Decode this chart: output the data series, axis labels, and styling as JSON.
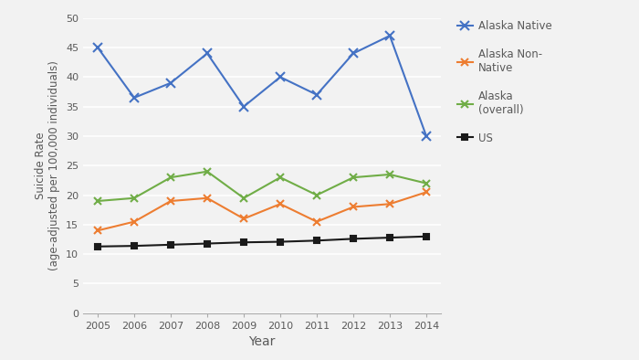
{
  "years": [
    2005,
    2006,
    2007,
    2008,
    2009,
    2010,
    2011,
    2012,
    2013,
    2014
  ],
  "alaska_native": [
    45,
    36.5,
    39,
    44,
    35,
    40,
    37,
    44,
    47,
    30
  ],
  "alaska_non_native": [
    14,
    15.5,
    19,
    19.5,
    16,
    18.5,
    15.5,
    18,
    18.5,
    20.5
  ],
  "alaska_overall": [
    19,
    19.5,
    23,
    24,
    19.5,
    23,
    20,
    23,
    23.5,
    22
  ],
  "us": [
    11.3,
    11.4,
    11.6,
    11.8,
    12.0,
    12.1,
    12.3,
    12.6,
    12.8,
    13.0
  ],
  "series_colors": {
    "alaska_native": "#4472C4",
    "alaska_non_native": "#ED7D31",
    "alaska_overall": "#70AD47",
    "us": "#1a1a1a"
  },
  "series_labels": {
    "alaska_native": "Alaska Native",
    "alaska_non_native": "Alaska Non-\nNative",
    "alaska_overall": "Alaska\n(overall)",
    "us": "US"
  },
  "series_markers": {
    "alaska_native": "x",
    "alaska_non_native": "x",
    "alaska_overall": "x",
    "us": "s"
  },
  "series_markersizes": {
    "alaska_native": 7,
    "alaska_non_native": 6,
    "alaska_overall": 6,
    "us": 5
  },
  "xlabel": "Year",
  "ylabel": "Suicide Rate\n(age-adjusted per 100,000 individuals)",
  "ylim": [
    0,
    50
  ],
  "yticks": [
    0,
    5,
    10,
    15,
    20,
    25,
    30,
    35,
    40,
    45,
    50
  ],
  "xlim": [
    2004.6,
    2014.4
  ],
  "linewidth": 1.5,
  "background_color": "#f2f2f2",
  "plot_bg_color": "#f2f2f2",
  "grid_color": "#ffffff",
  "grid_linewidth": 1.2,
  "label_color": "#595959",
  "tick_color": "#595959"
}
